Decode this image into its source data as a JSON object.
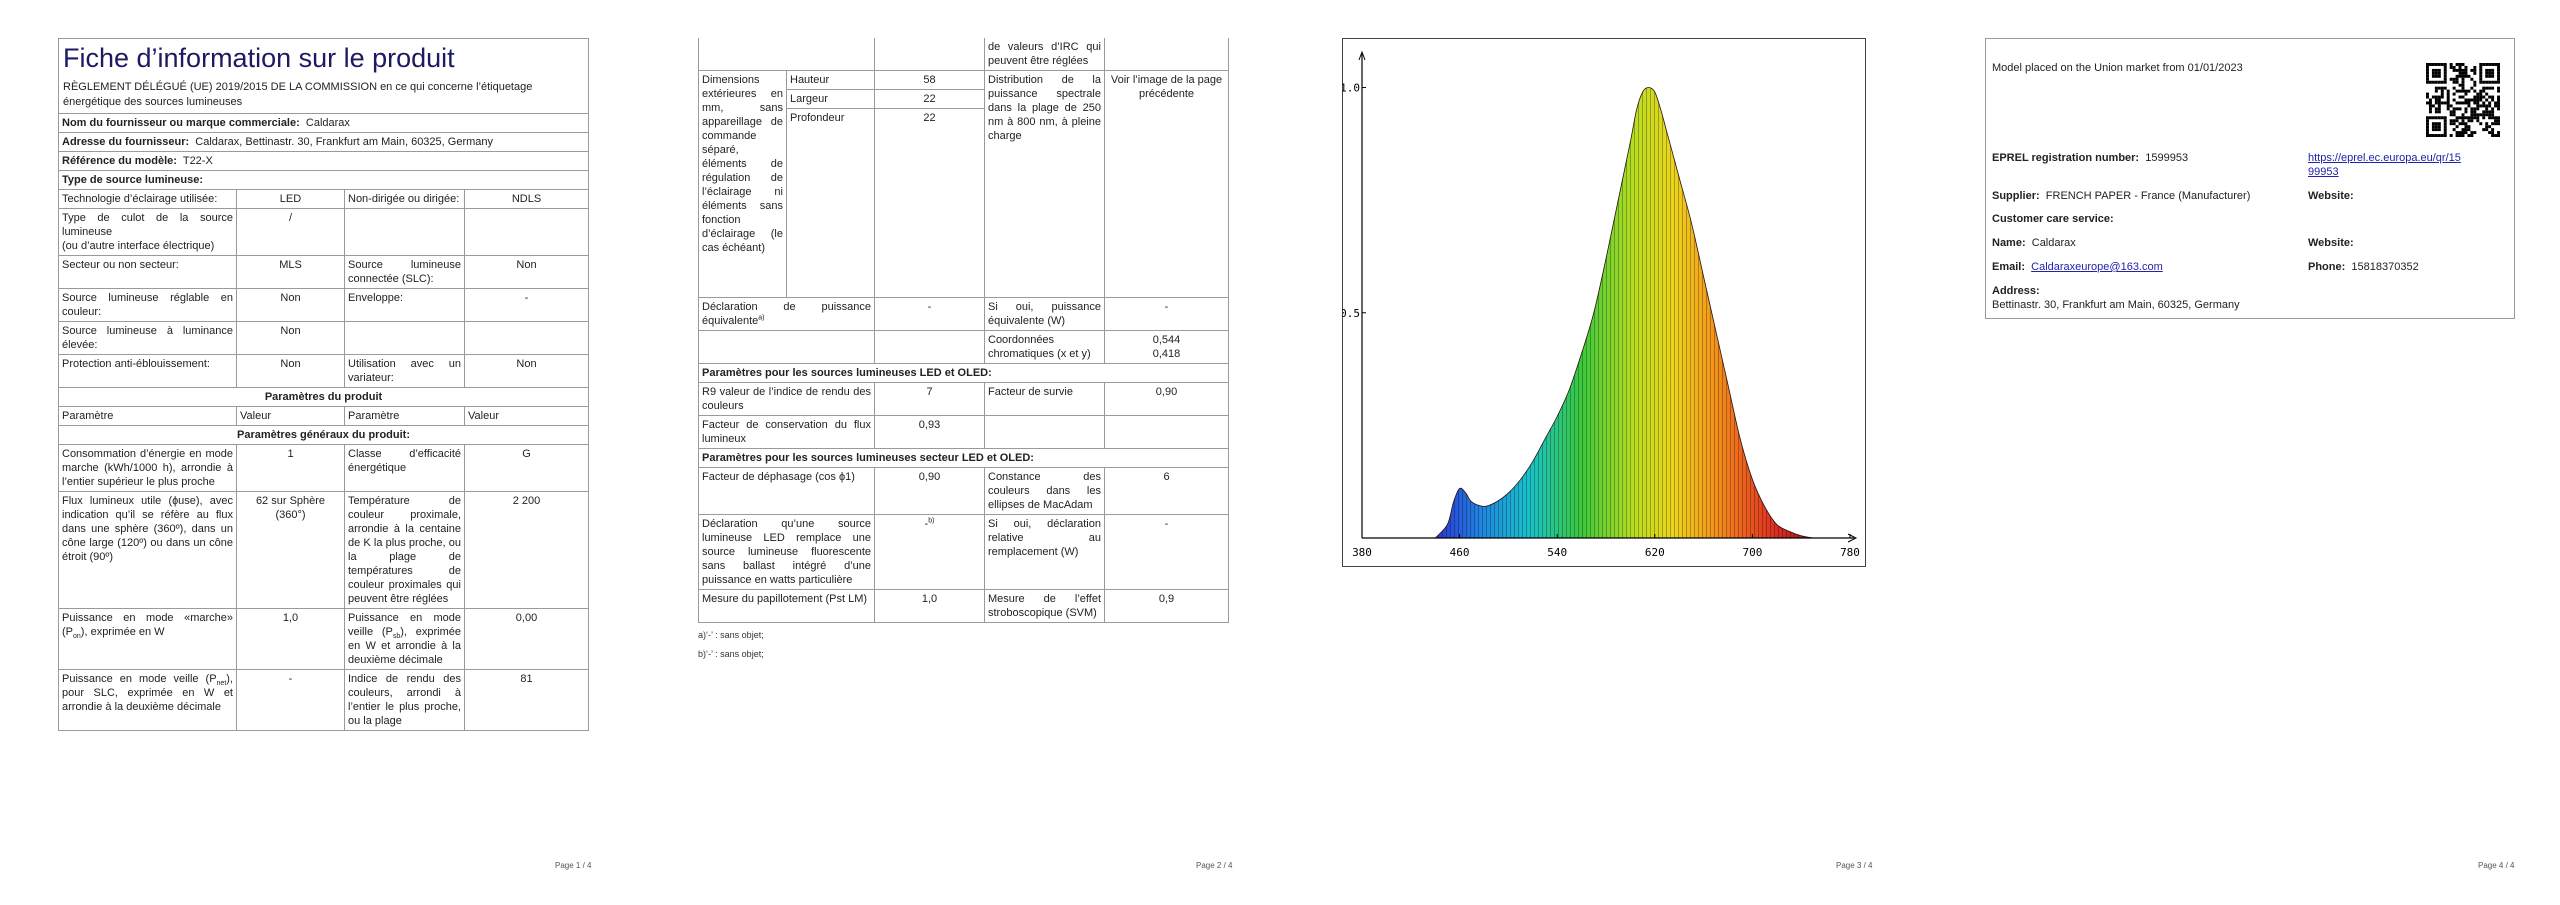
{
  "page1": {
    "title": "Fiche d’information sur le produit",
    "regulation": "RÈGLEMENT DÉLÉGUÉ (UE) 2019/2015 DE LA COMMISSION en ce qui concerne l’étiquetage énergétique des sources lumineuses",
    "supplier_label": "Nom du fournisseur ou marque commerciale:",
    "supplier_value": "Caldarax",
    "address_label": "Adresse du fournisseur:",
    "address_value": "Caldarax, Bettinastr. 30, Frankfurt am Main, 60325, Germany",
    "model_label": "Référence du modèle:",
    "model_value": "T22-X",
    "type_heading": "Type de source lumineuse:",
    "tech_label": "Technologie d’éclairage utilisée:",
    "tech_value": "LED",
    "directional_label": "Non-dirigée ou dirigée:",
    "directional_value": "NDLS",
    "cap_label1": "Type de culot de la source lumineuse",
    "cap_label2": "(ou d’autre interface électrique)",
    "cap_value": "/",
    "mains_label": "Secteur ou non secteur:",
    "mains_value": "MLS",
    "connected_label": "Source lumineuse connectée (SLC):",
    "connected_value": "Non",
    "tunable_label": "Source lumineuse réglable en couleur:",
    "tunable_value": "Non",
    "envelope_label": "Enveloppe:",
    "envelope_value": "-",
    "highlum_label": "Source lumineuse à luminance élevée:",
    "highlum_value": "Non",
    "glare_label": "Protection anti-éblouissement:",
    "glare_value": "Non",
    "dimmer_label": "Utilisation avec un variateur:",
    "dimmer_value": "Non",
    "params_heading": "Paramètres du produit",
    "col_param": "Paramètre",
    "col_value": "Valeur",
    "general_heading": "Paramètres généraux du produit:",
    "consumption_label": "Consommation d’énergie en mode marche (kWh/1000 h), arrondie à l’entier supérieur le plus proche",
    "consumption_value": "1",
    "class_label": "Classe d’efficacité énergétique",
    "class_value": "G",
    "flux_label": "Flux lumineux utile (ɸuse), avec indication qu’il se réfère au flux dans une sphère (360º), dans un cône large (120º) ou dans un cône étroit (90º)",
    "flux_value": "62 sur Sphère (360°)",
    "cct_label": "Température de couleur proximale, arrondie à la centaine de K la plus proche, ou la plage de températures de couleur proximales qui peuvent être réglées",
    "cct_value": "2 200",
    "power_on_label_a": "Puissance en mode «marche» (P",
    "power_on_sub": "on",
    "power_on_label_b": "), exprimée en W",
    "power_on_value": "1,0",
    "standby_label_a": "Puissance en mode veille (P",
    "standby_sub": "sb",
    "standby_label_b": "), exprimée en W et arrondie à la deuxième décimale",
    "standby_value": "0,00",
    "netstandby_label_a": "Puissance en mode veille (P",
    "netstandby_sub": "net",
    "netstandby_label_b": "), pour SLC, exprimée en W et arrondie à la deuxième décimale",
    "netstandby_value": "-",
    "cri_label": "Indice de rendu des couleurs, arrondi à l’entier le plus proche, ou la plage",
    "cri_value": "81",
    "page_num": "Page 1 / 4"
  },
  "page2": {
    "cri_cont": "de valeurs d’IRC qui peuvent être réglées",
    "dim_label": "Dimensions extérieures en mm, sans appareillage de commande séparé, éléments de régulation de l’éclairage ni éléments sans fonction d’éclairage (le cas échéant)",
    "height_label": "Hauteur",
    "height_value": "58",
    "width_label": "Largeur",
    "width_value": "22",
    "depth_label": "Profondeur",
    "depth_value": "22",
    "spd_label": "Distribution de la puissance spectrale dans la plage de 250 nm à 800 nm, à pleine charge",
    "spd_value": "Voir l’image de la page précédente",
    "equiv_label": "Déclaration de puissance équivalente",
    "equiv_sup": "a)",
    "equiv_value": "-",
    "equiv_if_label": "Si oui, puissance équivalente (W)",
    "equiv_if_value": "-",
    "chroma_label": "Coordonnées chromatiques (x et y)",
    "chroma_x": "0,544",
    "chroma_y": "0,418",
    "led_heading": "Paramètres pour les sources lumineuses LED et OLED:",
    "r9_label": "R9 valeur de l’indice de rendu des couleurs",
    "r9_value": "7",
    "survival_label": "Facteur de survie",
    "survival_value": "0,90",
    "maint_label": "Facteur de conservation du flux lumineux",
    "maint_value": "0,93",
    "mains_led_heading": "Paramètres pour les sources lumineuses secteur LED et OLED:",
    "pf_label": "Facteur de déphasage (cos ϕ1)",
    "pf_value": "0,90",
    "macadam_label": "Constance des couleurs dans les ellipses de MacAdam",
    "macadam_value": "6",
    "replace_label": "Déclaration qu’une source lumineuse LED remplace une source lumineuse fluorescente sans ballast intégré d’une puissance en watts particulière",
    "replace_value": "-",
    "replace_sup": "b)",
    "replace_if_label": "Si oui, déclaration relative au remplacement (W)",
    "replace_if_value": "-",
    "flicker_label": "Mesure du papillotement (Pst LM)",
    "flicker_value": "1,0",
    "strobo_label": "Mesure de l’effet stroboscopique (SVM)",
    "strobo_value": "0,9",
    "note_a": "a)‘-’ : sans objet;",
    "note_b": "b)‘-’ : sans objet;",
    "page_num": "Page 2 / 4"
  },
  "page3": {
    "page_num": "Page 3 / 4",
    "chart_data": {
      "type": "area",
      "title": "",
      "xlabel": "",
      "ylabel": "",
      "x_ticks": [
        "380",
        "460",
        "540",
        "620",
        "700",
        "780"
      ],
      "y_ticks": [
        "1.0",
        "0.5"
      ],
      "xlim": [
        380,
        780
      ],
      "ylim": [
        0,
        1.07
      ],
      "x": [
        440,
        450,
        455,
        460,
        465,
        470,
        480,
        490,
        500,
        510,
        520,
        530,
        540,
        550,
        560,
        570,
        580,
        590,
        600,
        605,
        610,
        615,
        620,
        625,
        630,
        640,
        650,
        660,
        670,
        680,
        690,
        700,
        710,
        720,
        730,
        740,
        750
      ],
      "values": [
        0.0,
        0.03,
        0.08,
        0.11,
        0.1,
        0.08,
        0.07,
        0.08,
        0.1,
        0.13,
        0.17,
        0.22,
        0.27,
        0.33,
        0.41,
        0.5,
        0.62,
        0.75,
        0.88,
        0.95,
        0.99,
        1.0,
        0.99,
        0.95,
        0.9,
        0.8,
        0.7,
        0.58,
        0.46,
        0.34,
        0.22,
        0.13,
        0.07,
        0.03,
        0.015,
        0.005,
        0.0
      ]
    }
  },
  "page4": {
    "placed": "Model placed on the Union market from 01/01/2023",
    "eprel_label": "EPREL registration number:",
    "eprel_value": "1599953",
    "eprel_link_1": "https://eprel.ec.europa.eu/qr/15",
    "eprel_link_2": "99953",
    "supplier_label": "Supplier:",
    "supplier_value": "FRENCH PAPER - France (Manufacturer)",
    "website_label_1": "Website:",
    "care_label": "Customer care service:",
    "name_label": "Name:",
    "name_value": "Caldarax",
    "website_label_2": "Website:",
    "email_label": "Email:",
    "email_value": "Caldaraxeurope@163.com",
    "phone_label": "Phone:",
    "phone_value": "15818370352",
    "address_label": "Address:",
    "address_value": "Bettinastr. 30, Frankfurt am Main, 60325, Germany",
    "page_num": "Page 4 / 4"
  },
  "colors": {
    "title": "#1c1a63",
    "link": "#2222aa",
    "border": "#9a9a9a"
  }
}
